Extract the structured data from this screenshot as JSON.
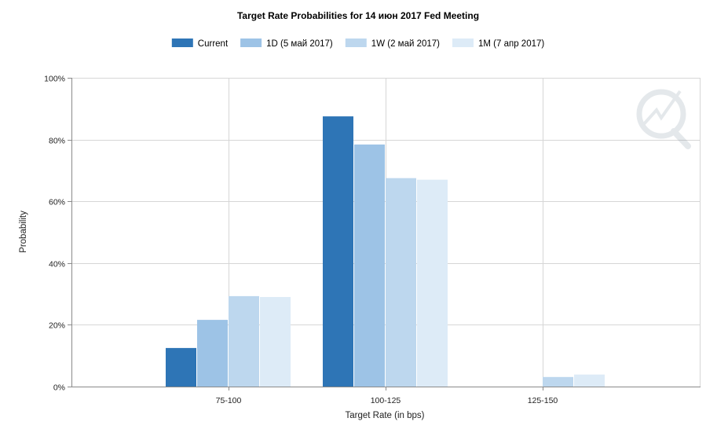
{
  "chart_data": {
    "type": "bar",
    "title": "Target Rate Probabilities for 14 июн 2017 Fed Meeting",
    "xlabel": "Target Rate (in bps)",
    "ylabel": "Probability",
    "ylim": [
      0,
      100
    ],
    "yticks": [
      "0%",
      "20%",
      "40%",
      "60%",
      "80%",
      "100%"
    ],
    "ytick_values": [
      0,
      20,
      40,
      60,
      80,
      100
    ],
    "categories": [
      "75-100",
      "100-125",
      "125-150"
    ],
    "legend_position": "top-center",
    "grid": true,
    "series": [
      {
        "name": "Current",
        "color": "#2e75b6",
        "values": [
          12.5,
          87.5,
          0
        ]
      },
      {
        "name": "1D (5 май 2017)",
        "color": "#9dc3e6",
        "values": [
          21.6,
          78.4,
          0
        ]
      },
      {
        "name": "1W (2 май 2017)",
        "color": "#bdd7ee",
        "values": [
          29.3,
          67.5,
          3.1
        ]
      },
      {
        "name": "1M (7 апр 2017)",
        "color": "#ddebf7",
        "values": [
          29.0,
          67.0,
          3.9
        ]
      }
    ]
  }
}
